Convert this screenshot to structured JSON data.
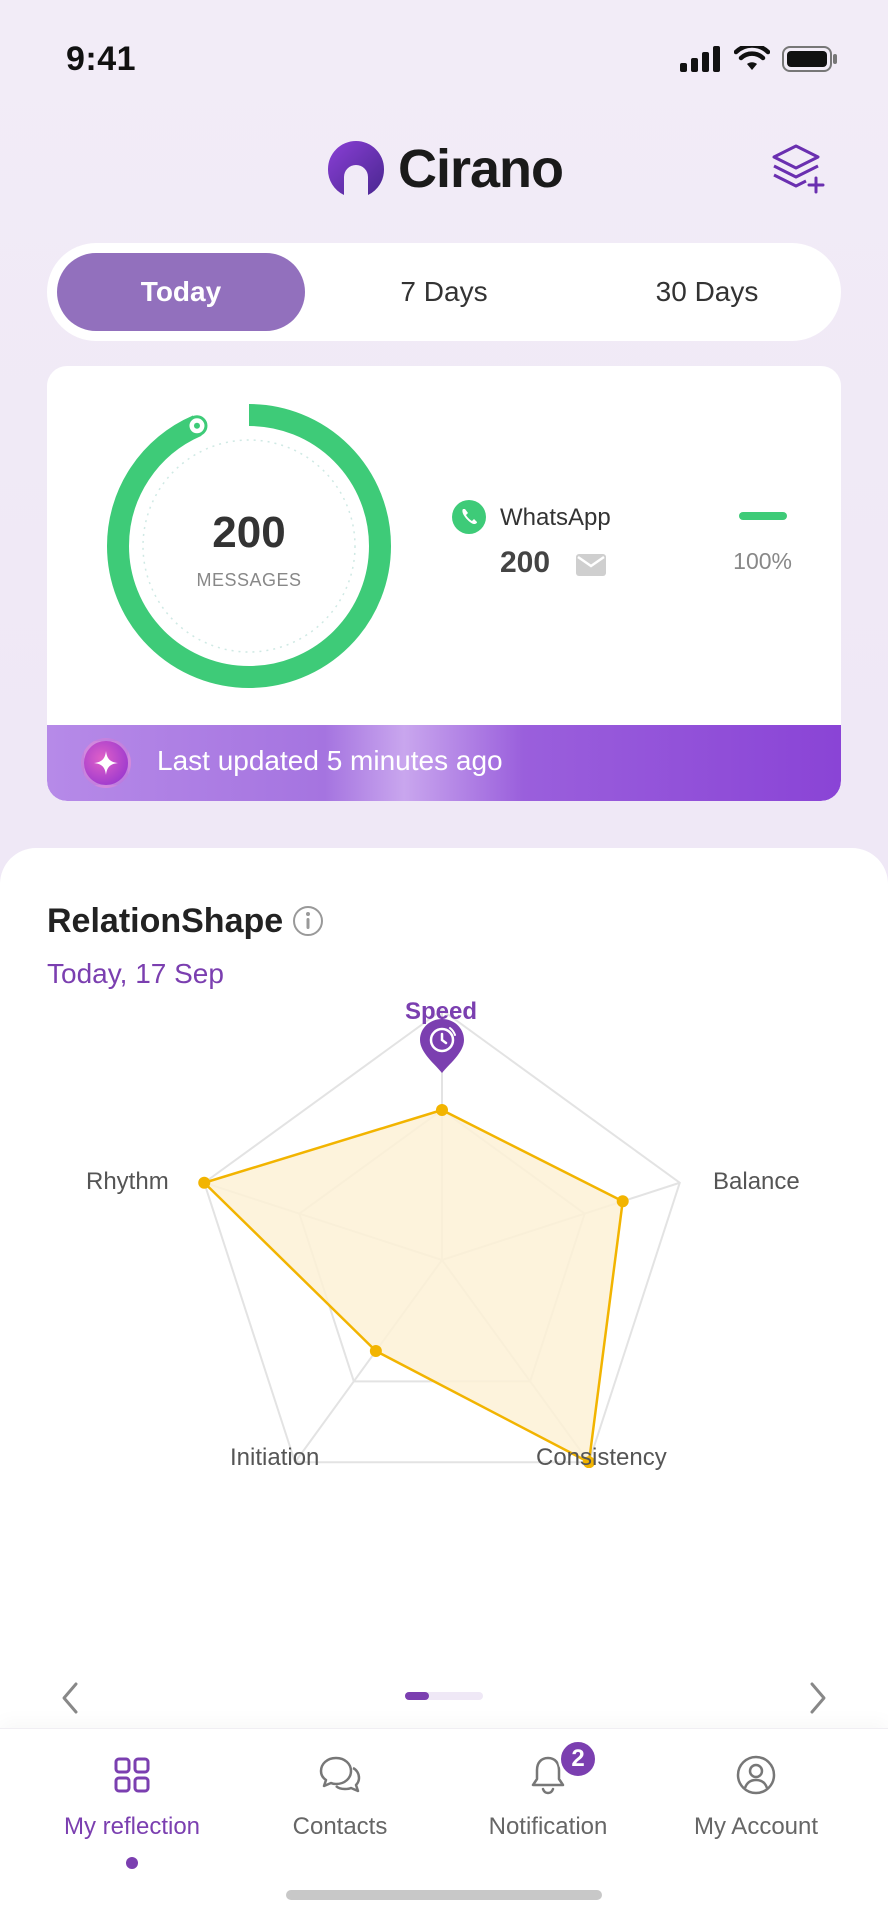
{
  "status_bar": {
    "time": "9:41",
    "icons": [
      "signal-icon",
      "wifi-icon",
      "battery-icon"
    ]
  },
  "header": {
    "app_name": "Cirano",
    "logo_icon": "cirano-logo-icon",
    "action_icon": "layers-plus-icon"
  },
  "tabs": [
    {
      "label": "Today",
      "active": true
    },
    {
      "label": "7 Days",
      "active": false
    },
    {
      "label": "30 Days",
      "active": false
    }
  ],
  "stats": {
    "total_value": "200",
    "total_label": "MESSAGES",
    "ring_progress": 1.0,
    "ring_color": "#3ecb78",
    "channels": [
      {
        "name": "WhatsApp",
        "count": "200",
        "percent": "100%",
        "icon": "whatsapp-phone-icon",
        "color": "#3ecb78"
      }
    ],
    "update_text": "Last updated 5 minutes ago",
    "update_icon": "sparkle-icon"
  },
  "relation_shape": {
    "title": "RelationShape",
    "date": "Today, 17 Sep",
    "axes": [
      "Speed",
      "Balance",
      "Consistency",
      "Initiation",
      "Rhythm"
    ],
    "highlight_axis": "Speed",
    "highlight_icon": "stopwatch-pin-icon",
    "values": [
      0.6,
      0.76,
      1.0,
      0.45,
      1.0
    ],
    "fill_color": "#fdf1d6",
    "line_color": "#f2b400",
    "accent_color": "#7b3fb0"
  },
  "pager": {
    "current_page": 1,
    "total_pages": 3
  },
  "nav": [
    {
      "label": "My reflection",
      "icon": "grid-icon",
      "active": true
    },
    {
      "label": "Contacts",
      "icon": "chat-bubbles-icon",
      "active": false
    },
    {
      "label": "Notification",
      "icon": "bell-icon",
      "active": false,
      "badge": "2"
    },
    {
      "label": "My Account",
      "icon": "user-circle-icon",
      "active": false
    }
  ]
}
